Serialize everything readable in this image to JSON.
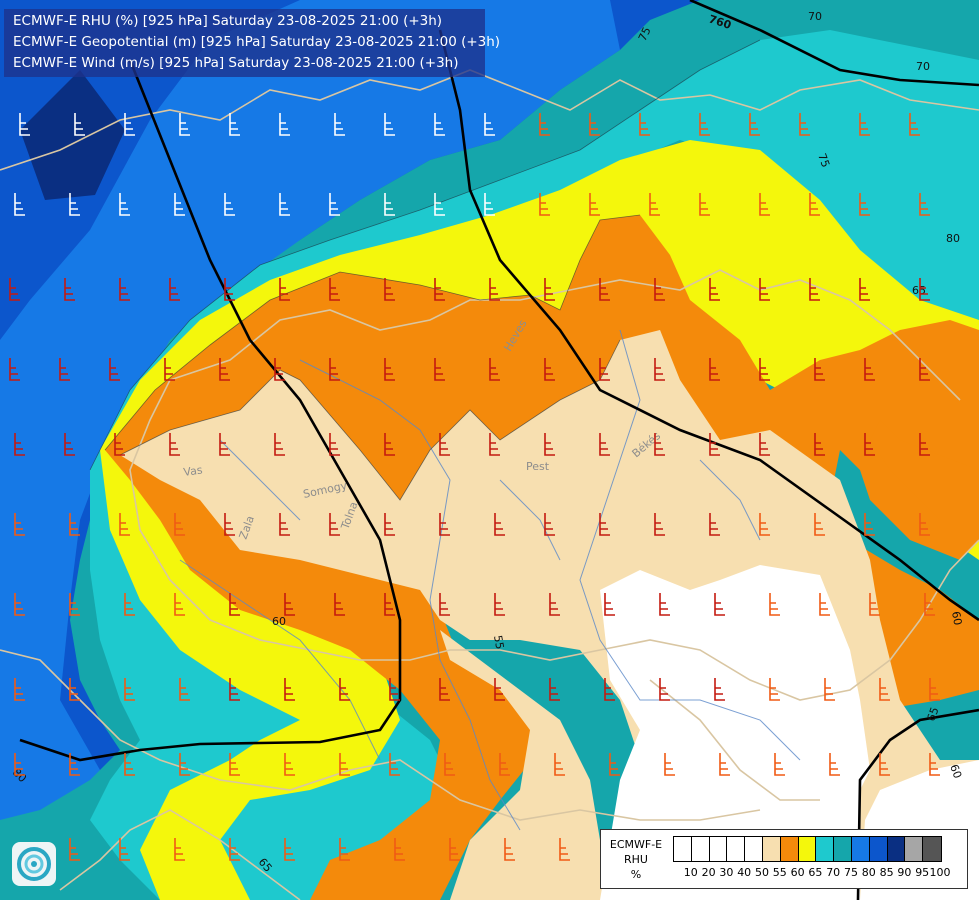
{
  "title": {
    "line1": "ECMWF-E RHU (%) [925 hPa] Saturday 23-08-2025 21:00 (+3h)",
    "line2": "ECMWF-E Geopotential (m) [925 hPa] Saturday 23-08-2025 21:00 (+3h)",
    "line3": "ECMWF-E Wind (m/s) [925 hPa] Saturday 23-08-2025 21:00 (+3h)"
  },
  "legend": {
    "model": "ECMWF-E",
    "variable": "RHU",
    "unit": "%",
    "ticks": [
      "10",
      "20",
      "30",
      "40",
      "50",
      "55",
      "60",
      "65",
      "70",
      "75",
      "80",
      "85",
      "90",
      "95",
      "100"
    ],
    "colors": [
      "#ffffff",
      "#ffffff",
      "#ffffff",
      "#ffffff",
      "#ffffff",
      "#f7dfb0",
      "#f48a0b",
      "#f4f70c",
      "#1ec9ce",
      "#15a6ab",
      "#1679e6",
      "#0c56cc",
      "#0a2f82",
      "#a6a6a6",
      "#555555"
    ]
  },
  "contour_labels": {
    "geopotential": [
      "760"
    ],
    "rhu": [
      "70",
      "70",
      "75",
      "75",
      "80",
      "65",
      "60",
      "55",
      "80",
      "65",
      "60",
      "65",
      "60"
    ]
  },
  "places": [
    "Vas",
    "Somogy",
    "Zala",
    "Tolna",
    "Pest",
    "Heves",
    "Békés"
  ],
  "rhu_colors": {
    "r55": "#f7dfb0",
    "r60": "#f48a0b",
    "r65": "#f4f70c",
    "r70": "#1ec9ce",
    "r75": "#15a6ab",
    "r80": "#1679e6",
    "r85": "#0c56cc",
    "r90": "#0a2f82"
  },
  "icons": {
    "logo": "ogimet-swirl-logo",
    "wind": "wind-barb-icon"
  }
}
